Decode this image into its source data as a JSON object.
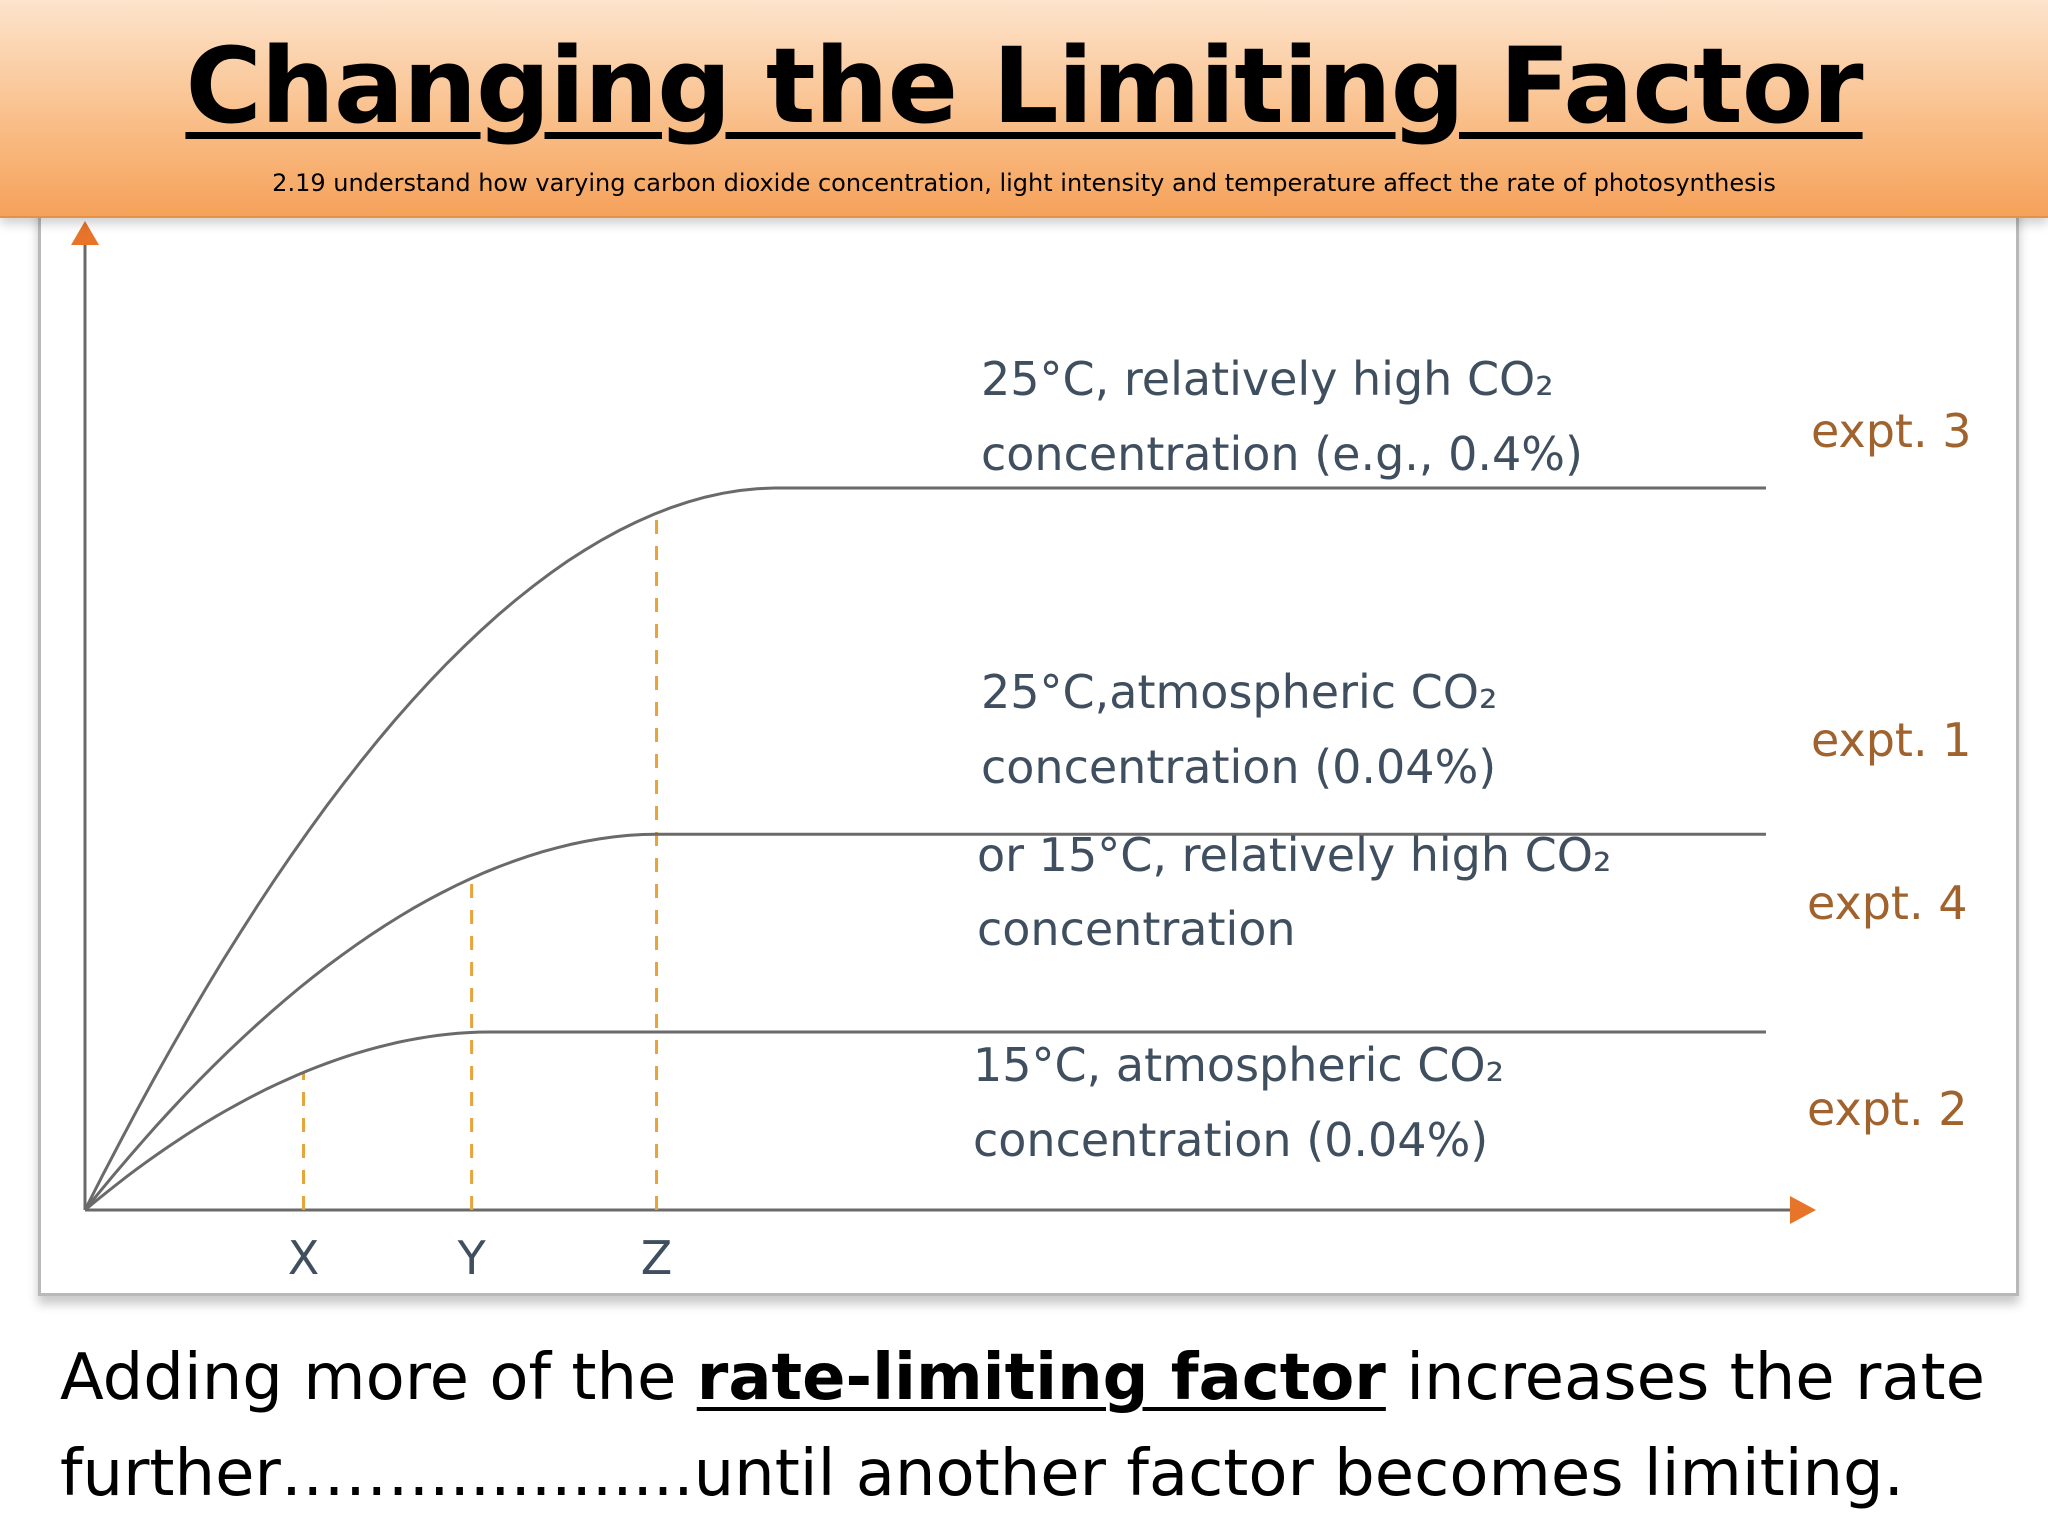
{
  "header": {
    "title": "Changing the Limiting Factor",
    "subtitle": "2.19 understand how varying carbon dioxide concentration, light intensity and temperature affect the rate of photosynthesis"
  },
  "footer": {
    "line1_pre": "Adding more of the ",
    "line1_emph": "rate-limiting factor",
    "line1_post": " increases the rate",
    "line2": "further……..............until another factor becomes limiting."
  },
  "colors": {
    "header_top": "#fde4cc",
    "header_bottom": "#f5a25a",
    "axis_arrow": "#e8742a",
    "curve": "#6a6a6a",
    "dashed_marker": "#e8a33a",
    "condition_text": "#3f4f5f",
    "expt_text": "#a0632e"
  },
  "chart_data": {
    "type": "line",
    "title": "",
    "xlabel": "",
    "ylabel": "",
    "xlim": [
      0,
      100
    ],
    "ylim": [
      0,
      100
    ],
    "x_markers": [
      {
        "label": "X",
        "x": 13
      },
      {
        "label": "Y",
        "x": 23
      },
      {
        "label": "Z",
        "x": 34
      }
    ],
    "series": [
      {
        "name": "expt. 3",
        "condition_lines": [
          "25°C, relatively high CO₂",
          "concentration (e.g., 0.4%)"
        ],
        "plateau": 73,
        "saturation_x": 41,
        "end_x": 100
      },
      {
        "name": "expt. 1",
        "condition_lines": [
          "25°C,atmospheric CO₂",
          "concentration (0.04%)"
        ],
        "plateau": 38,
        "saturation_x": 34,
        "end_x": 100
      },
      {
        "name": "expt. 4",
        "condition_lines": [
          "or 15°C, relatively high CO₂",
          "concentration"
        ],
        "plateau": 38,
        "saturation_x": 34,
        "end_x": 100
      },
      {
        "name": "expt. 2",
        "condition_lines": [
          "15°C, atmospheric CO₂",
          "concentration (0.04%)"
        ],
        "plateau": 18,
        "saturation_x": 24,
        "end_x": 100
      }
    ]
  }
}
